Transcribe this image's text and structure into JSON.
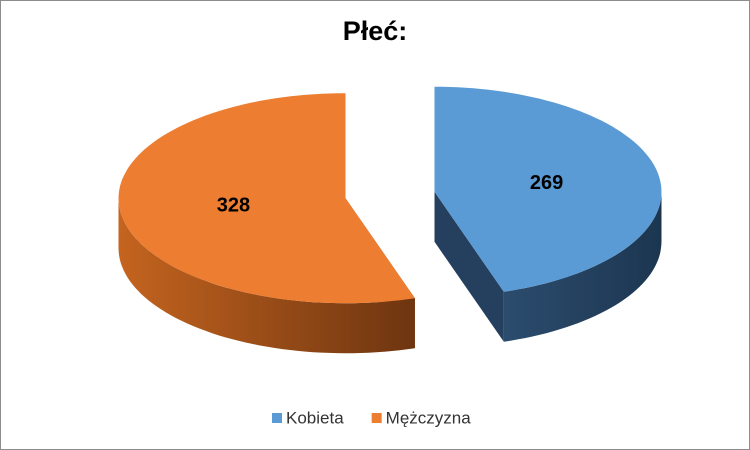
{
  "chart_data": {
    "type": "pie3d",
    "title": "Płeć:",
    "categories": [
      "Kobieta",
      "Mężczyzna"
    ],
    "values": [
      269,
      328
    ],
    "colors": [
      "#5b9bd5",
      "#ed7d31"
    ],
    "side_colors": [
      "#24405e",
      "#9a4a16"
    ],
    "legend": "bottom"
  }
}
